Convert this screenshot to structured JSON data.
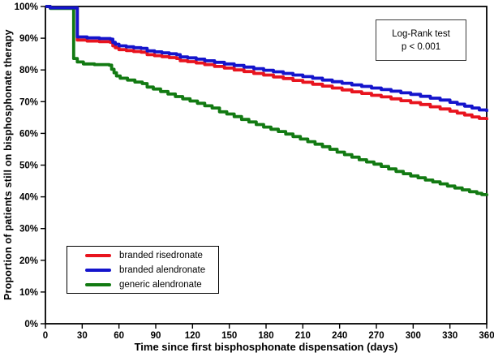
{
  "figure": {
    "background": "#ffffff",
    "frame_color": "#000000"
  },
  "annotation": {
    "line1": "Log-Rank test",
    "line2": "p < 0.001"
  },
  "chart_data": {
    "type": "line",
    "subtype": "kaplan-meier-step",
    "title": "",
    "xlabel": "Time since first bisphosphonate dispensation (days)",
    "ylabel": "Proportion of patients still on bisphosphonate therapy",
    "xlim": [
      0,
      360
    ],
    "ylim": [
      0,
      100
    ],
    "x_ticks": [
      0,
      30,
      60,
      90,
      120,
      150,
      180,
      210,
      240,
      270,
      300,
      330,
      360
    ],
    "y_ticks": [
      0,
      10,
      20,
      30,
      40,
      50,
      60,
      70,
      80,
      90,
      100
    ],
    "y_tick_suffix": "%",
    "grid": false,
    "legend_position": "lower-left",
    "draw_order": [
      0,
      2,
      1
    ],
    "series": [
      {
        "name": "branded risedronate",
        "color": "#e8141e",
        "points": [
          [
            0,
            100
          ],
          [
            4,
            99.5
          ],
          [
            26,
            99.3
          ],
          [
            26,
            89.4
          ],
          [
            34,
            89.1
          ],
          [
            44,
            88.9
          ],
          [
            53,
            88.7
          ],
          [
            55,
            87.6
          ],
          [
            57,
            87.0
          ],
          [
            60,
            86.4
          ],
          [
            66,
            86.1
          ],
          [
            72,
            85.8
          ],
          [
            78,
            85.6
          ],
          [
            83,
            84.8
          ],
          [
            89,
            84.5
          ],
          [
            95,
            84.2
          ],
          [
            101,
            83.9
          ],
          [
            107,
            83.6
          ],
          [
            110,
            82.9
          ],
          [
            116,
            82.6
          ],
          [
            123,
            82.2
          ],
          [
            130,
            81.7
          ],
          [
            138,
            81.1
          ],
          [
            146,
            80.6
          ],
          [
            154,
            80.0
          ],
          [
            162,
            79.5
          ],
          [
            170,
            78.9
          ],
          [
            178,
            78.4
          ],
          [
            186,
            77.8
          ],
          [
            194,
            77.3
          ],
          [
            202,
            76.7
          ],
          [
            210,
            76.1
          ],
          [
            218,
            75.5
          ],
          [
            226,
            74.9
          ],
          [
            234,
            74.3
          ],
          [
            242,
            73.7
          ],
          [
            250,
            73.1
          ],
          [
            258,
            72.6
          ],
          [
            266,
            72.0
          ],
          [
            274,
            71.5
          ],
          [
            282,
            70.9
          ],
          [
            290,
            70.3
          ],
          [
            298,
            69.7
          ],
          [
            306,
            69.1
          ],
          [
            314,
            68.4
          ],
          [
            322,
            67.7
          ],
          [
            330,
            67.0
          ],
          [
            336,
            66.4
          ],
          [
            342,
            65.8
          ],
          [
            348,
            65.2
          ],
          [
            354,
            64.7
          ],
          [
            360,
            64.2
          ]
        ]
      },
      {
        "name": "branded alendronate",
        "color": "#1414cc",
        "points": [
          [
            0,
            100
          ],
          [
            4,
            99.6
          ],
          [
            26,
            99.4
          ],
          [
            26,
            90.4
          ],
          [
            34,
            90.1
          ],
          [
            44,
            89.9
          ],
          [
            53,
            89.7
          ],
          [
            55,
            88.7
          ],
          [
            57,
            88.1
          ],
          [
            60,
            87.6
          ],
          [
            66,
            87.3
          ],
          [
            72,
            87.0
          ],
          [
            78,
            86.8
          ],
          [
            83,
            86.0
          ],
          [
            89,
            85.7
          ],
          [
            95,
            85.4
          ],
          [
            101,
            85.1
          ],
          [
            107,
            84.8
          ],
          [
            110,
            84.1
          ],
          [
            116,
            83.8
          ],
          [
            123,
            83.4
          ],
          [
            130,
            82.9
          ],
          [
            138,
            82.4
          ],
          [
            146,
            81.9
          ],
          [
            154,
            81.4
          ],
          [
            162,
            80.9
          ],
          [
            170,
            80.4
          ],
          [
            178,
            79.9
          ],
          [
            186,
            79.4
          ],
          [
            194,
            78.9
          ],
          [
            202,
            78.4
          ],
          [
            210,
            77.9
          ],
          [
            218,
            77.4
          ],
          [
            226,
            76.8
          ],
          [
            234,
            76.3
          ],
          [
            242,
            75.8
          ],
          [
            250,
            75.3
          ],
          [
            258,
            74.8
          ],
          [
            266,
            74.3
          ],
          [
            274,
            73.8
          ],
          [
            282,
            73.3
          ],
          [
            290,
            72.8
          ],
          [
            298,
            72.3
          ],
          [
            306,
            71.7
          ],
          [
            314,
            71.1
          ],
          [
            322,
            70.5
          ],
          [
            330,
            69.8
          ],
          [
            336,
            69.2
          ],
          [
            342,
            68.6
          ],
          [
            348,
            68.0
          ],
          [
            354,
            67.4
          ],
          [
            360,
            66.8
          ]
        ]
      },
      {
        "name": "generic alendronate",
        "color": "#127a12",
        "points": [
          [
            0,
            100
          ],
          [
            4,
            99.4
          ],
          [
            23,
            99.1
          ],
          [
            23,
            83.6
          ],
          [
            26,
            82.5
          ],
          [
            31,
            81.9
          ],
          [
            40,
            81.7
          ],
          [
            52,
            81.5
          ],
          [
            54,
            80.2
          ],
          [
            56,
            79.1
          ],
          [
            58,
            78.1
          ],
          [
            61,
            77.4
          ],
          [
            67,
            76.8
          ],
          [
            73,
            76.2
          ],
          [
            79,
            75.7
          ],
          [
            83,
            74.6
          ],
          [
            88,
            74.0
          ],
          [
            94,
            73.2
          ],
          [
            100,
            72.4
          ],
          [
            106,
            71.6
          ],
          [
            112,
            70.9
          ],
          [
            118,
            70.2
          ],
          [
            124,
            69.5
          ],
          [
            130,
            68.7
          ],
          [
            136,
            68.0
          ],
          [
            142,
            66.8
          ],
          [
            148,
            66.1
          ],
          [
            154,
            65.3
          ],
          [
            160,
            64.4
          ],
          [
            166,
            63.6
          ],
          [
            172,
            62.8
          ],
          [
            178,
            62.0
          ],
          [
            184,
            61.3
          ],
          [
            190,
            60.6
          ],
          [
            196,
            59.8
          ],
          [
            202,
            59.0
          ],
          [
            208,
            58.2
          ],
          [
            214,
            57.4
          ],
          [
            220,
            56.6
          ],
          [
            226,
            55.8
          ],
          [
            232,
            55.0
          ],
          [
            238,
            54.1
          ],
          [
            244,
            53.3
          ],
          [
            250,
            52.5
          ],
          [
            256,
            51.7
          ],
          [
            262,
            51.0
          ],
          [
            268,
            50.3
          ],
          [
            274,
            49.6
          ],
          [
            280,
            48.8
          ],
          [
            286,
            48.0
          ],
          [
            292,
            47.3
          ],
          [
            298,
            46.6
          ],
          [
            304,
            46.0
          ],
          [
            310,
            45.3
          ],
          [
            316,
            44.7
          ],
          [
            322,
            44.1
          ],
          [
            328,
            43.4
          ],
          [
            334,
            42.8
          ],
          [
            340,
            42.2
          ],
          [
            346,
            41.6
          ],
          [
            352,
            41.1
          ],
          [
            356,
            40.7
          ],
          [
            360,
            40.3
          ]
        ]
      }
    ]
  }
}
